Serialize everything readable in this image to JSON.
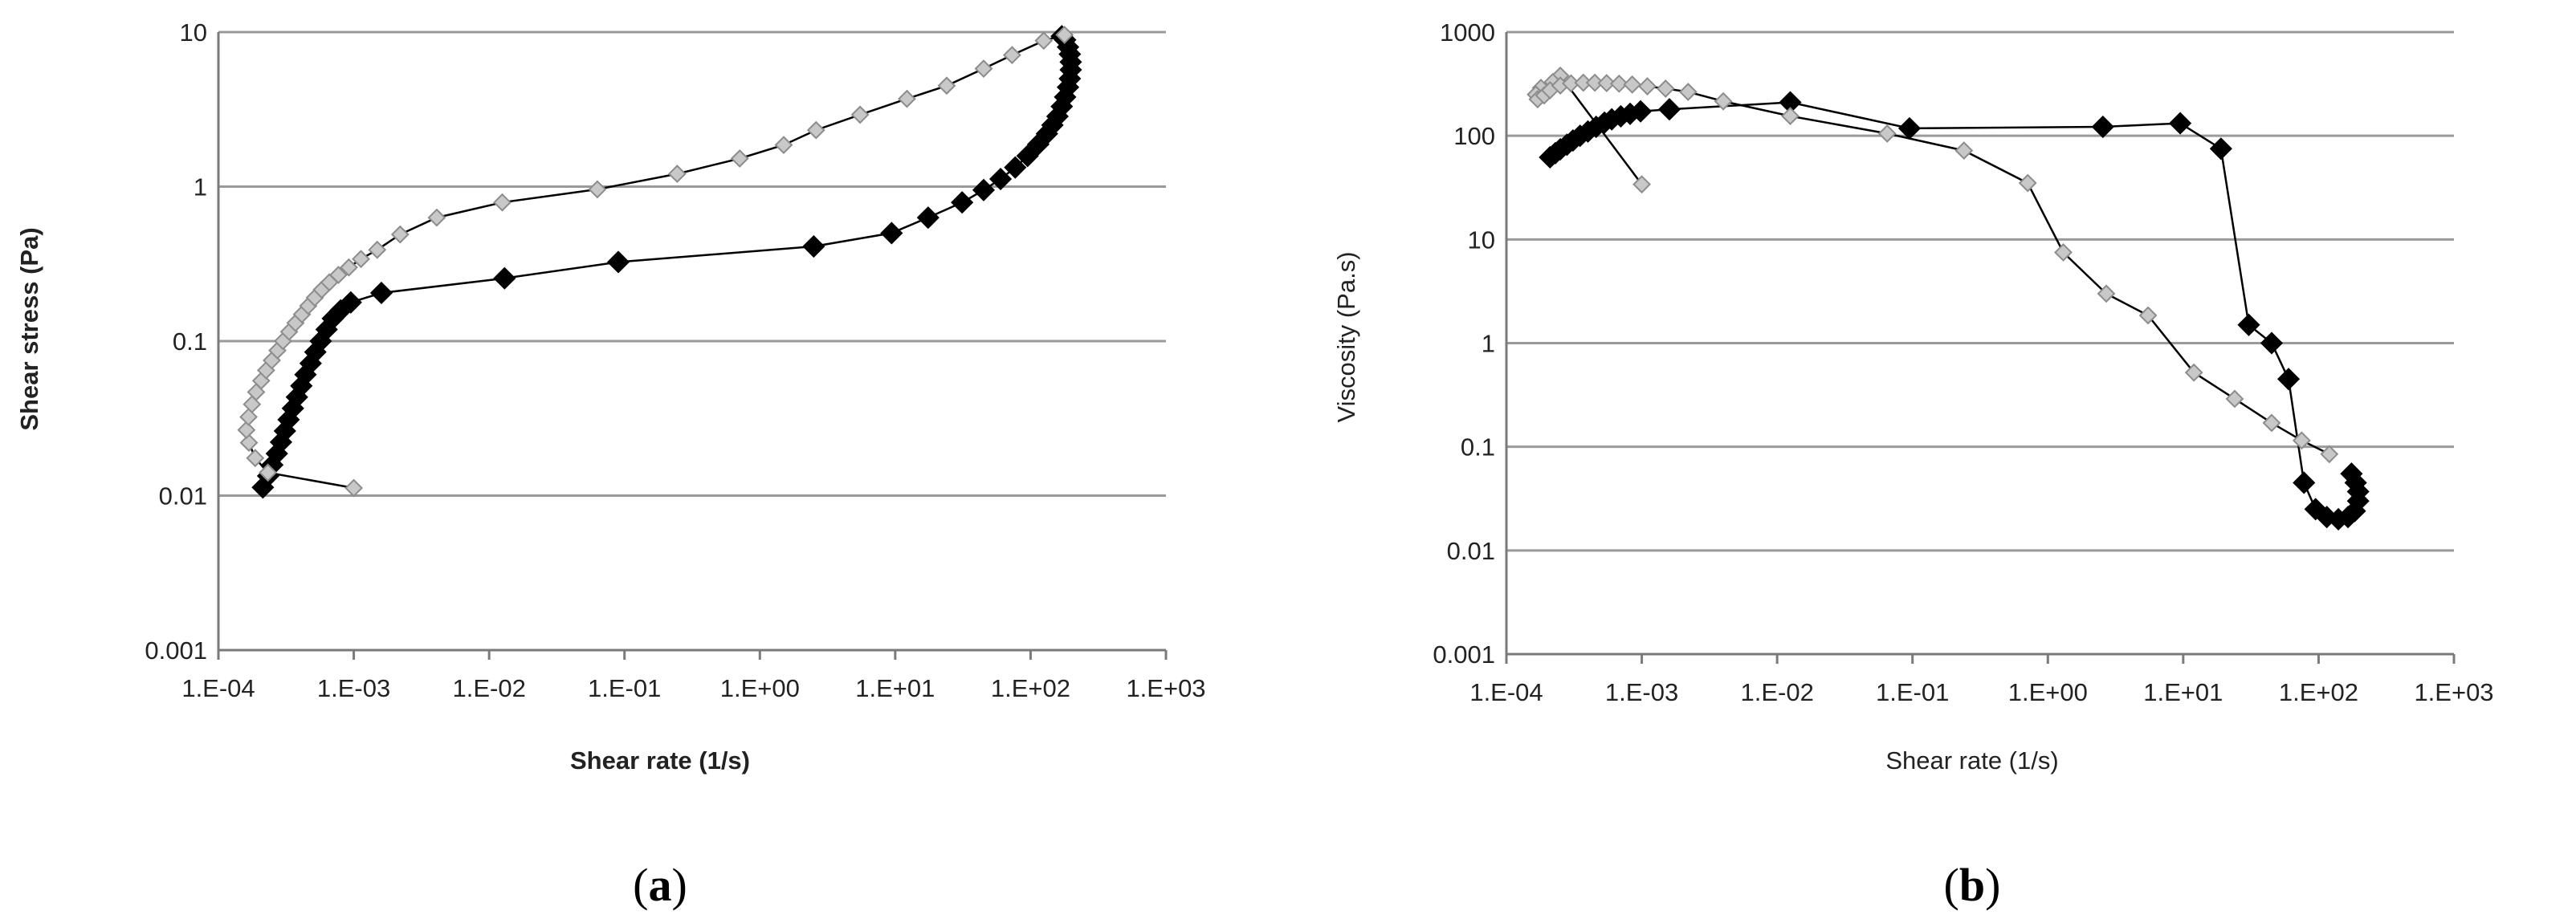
{
  "chart_data": [
    {
      "type": "scatter",
      "panel_label": "a",
      "xlabel": "Shear rate (1/s)",
      "ylabel": "Shear stress (Pa)",
      "xscale": "log",
      "yscale": "log",
      "xlim": [
        0.0001,
        1000
      ],
      "ylim": [
        0.001,
        10
      ],
      "xticks": [
        "1.E-04",
        "1.E-03",
        "1.E-02",
        "1.E-01",
        "1.E+00",
        "1.E+01",
        "1.E+02",
        "1.E+03"
      ],
      "yticks": [
        "0.001",
        "0.01",
        "0.1",
        "1",
        "10"
      ],
      "grid": "horizontal",
      "series": [
        {
          "color": "#000000",
          "marker": "diamond-filled",
          "points": [
            [
              0.000213,
              0.0113
            ],
            [
              0.000233,
              0.0134
            ],
            [
              0.00025,
              0.0158
            ],
            [
              0.00027,
              0.0187
            ],
            [
              0.00029,
              0.0222
            ],
            [
              0.00031,
              0.0262
            ],
            [
              0.00033,
              0.031
            ],
            [
              0.000355,
              0.0367
            ],
            [
              0.00038,
              0.0434
            ],
            [
              0.00041,
              0.0513
            ],
            [
              0.00044,
              0.0607
            ],
            [
              0.00048,
              0.0718
            ],
            [
              0.00052,
              0.0849
            ],
            [
              0.00057,
              0.1
            ],
            [
              0.00063,
              0.119
            ],
            [
              0.0007,
              0.14
            ],
            [
              0.0008,
              0.158
            ],
            [
              0.00095,
              0.178
            ],
            [
              0.0016,
              0.205
            ],
            [
              0.013,
              0.255
            ],
            [
              0.09,
              0.325
            ],
            [
              2.5,
              0.41
            ],
            [
              9.4,
              0.5
            ],
            [
              17.5,
              0.63
            ],
            [
              31.2,
              0.79
            ],
            [
              45,
              0.95
            ],
            [
              60,
              1.12
            ],
            [
              77,
              1.33
            ],
            [
              95,
              1.58
            ],
            [
              114,
              1.88
            ],
            [
              132,
              2.2
            ],
            [
              145,
              2.5
            ],
            [
              158,
              2.85
            ],
            [
              170,
              3.3
            ],
            [
              180,
              3.8
            ],
            [
              189,
              4.4
            ],
            [
              195,
              5.0
            ],
            [
              198,
              5.7
            ],
            [
              198,
              6.4
            ],
            [
              195,
              7.2
            ],
            [
              189,
              8.0
            ],
            [
              180,
              8.9
            ],
            [
              170,
              9.4
            ]
          ]
        },
        {
          "color": "#8c8c8c",
          "marker": "diamond-open",
          "points": [
            [
              0.001,
              0.0112
            ],
            [
              0.000232,
              0.0141
            ],
            [
              0.000187,
              0.0175
            ],
            [
              0.000168,
              0.022
            ],
            [
              0.000161,
              0.0266
            ],
            [
              0.000167,
              0.0323
            ],
            [
              0.000177,
              0.039
            ],
            [
              0.00019,
              0.0468
            ],
            [
              0.000207,
              0.0554
            ],
            [
              0.000225,
              0.0647
            ],
            [
              0.000248,
              0.075
            ],
            [
              0.000273,
              0.087
            ],
            [
              0.0003,
              0.1
            ],
            [
              0.000333,
              0.115
            ],
            [
              0.000371,
              0.131
            ],
            [
              0.000414,
              0.149
            ],
            [
              0.000461,
              0.169
            ],
            [
              0.000515,
              0.191
            ],
            [
              0.00058,
              0.215
            ],
            [
              0.00066,
              0.24
            ],
            [
              0.00077,
              0.268
            ],
            [
              0.00092,
              0.3
            ],
            [
              0.00113,
              0.34
            ],
            [
              0.00149,
              0.39
            ],
            [
              0.0022,
              0.49
            ],
            [
              0.0041,
              0.63
            ],
            [
              0.0125,
              0.79
            ],
            [
              0.063,
              0.96
            ],
            [
              0.245,
              1.21
            ],
            [
              0.71,
              1.52
            ],
            [
              1.5,
              1.86
            ],
            [
              2.6,
              2.32
            ],
            [
              5.5,
              2.92
            ],
            [
              12.2,
              3.7
            ],
            [
              24,
              4.5
            ],
            [
              45,
              5.8
            ],
            [
              73,
              7.1
            ],
            [
              125,
              8.8
            ],
            [
              178,
              9.6
            ]
          ]
        }
      ]
    },
    {
      "type": "scatter",
      "panel_label": "b",
      "xlabel": "Shear rate (1/s)",
      "ylabel": "Viscosity (Pa.s)",
      "xscale": "log",
      "yscale": "log",
      "xlim": [
        0.0001,
        1000
      ],
      "ylim": [
        0.001,
        1000
      ],
      "xticks": [
        "1.E-04",
        "1.E-03",
        "1.E-02",
        "1.E-01",
        "1.E+00",
        "1.E+01",
        "1.E+02",
        "1.E+03"
      ],
      "yticks": [
        "0.001",
        "0.01",
        "0.1",
        "1",
        "10",
        "100",
        "1000"
      ],
      "grid": "horizontal",
      "series": [
        {
          "color": "#000000",
          "marker": "diamond-filled",
          "points": [
            [
              0.00021,
              62
            ],
            [
              0.00023,
              68
            ],
            [
              0.00025,
              74
            ],
            [
              0.00028,
              82
            ],
            [
              0.00031,
              90
            ],
            [
              0.00035,
              100
            ],
            [
              0.0004,
              110
            ],
            [
              0.00046,
              122
            ],
            [
              0.00053,
              134
            ],
            [
              0.0006,
              144
            ],
            [
              0.0007,
              154
            ],
            [
              0.00082,
              163
            ],
            [
              0.00098,
              172
            ],
            [
              0.0016,
              180
            ],
            [
              0.0125,
              210
            ],
            [
              0.095,
              118
            ],
            [
              2.55,
              122
            ],
            [
              9.5,
              132
            ],
            [
              19,
              75
            ],
            [
              30.5,
              1.5
            ],
            [
              45,
              1.0
            ],
            [
              60,
              0.45
            ],
            [
              78,
              0.045
            ],
            [
              95,
              0.025
            ],
            [
              115,
              0.021
            ],
            [
              140,
              0.02
            ],
            [
              165,
              0.021
            ],
            [
              185,
              0.024
            ],
            [
              196,
              0.03
            ],
            [
              196,
              0.037
            ],
            [
              188,
              0.045
            ],
            [
              175,
              0.055
            ]
          ]
        },
        {
          "color": "#8c8c8c",
          "marker": "diamond-open",
          "points": [
            [
              0.001,
              34
            ],
            [
              0.00025,
              380
            ],
            [
              0.00022,
              330
            ],
            [
              0.00018,
              290
            ],
            [
              0.000165,
              250
            ],
            [
              0.00017,
              225
            ],
            [
              0.00019,
              245
            ],
            [
              0.00021,
              275
            ],
            [
              0.00025,
              305
            ],
            [
              0.0003,
              320
            ],
            [
              0.00037,
              325
            ],
            [
              0.00045,
              325
            ],
            [
              0.00055,
              322
            ],
            [
              0.00068,
              318
            ],
            [
              0.00085,
              312
            ],
            [
              0.0011,
              300
            ],
            [
              0.0015,
              285
            ],
            [
              0.0022,
              265
            ],
            [
              0.004,
              215
            ],
            [
              0.0125,
              155
            ],
            [
              0.065,
              105
            ],
            [
              0.24,
              72
            ],
            [
              0.71,
              35
            ],
            [
              1.3,
              7.5
            ],
            [
              2.7,
              3.0
            ],
            [
              5.5,
              1.85
            ],
            [
              12,
              0.52
            ],
            [
              24,
              0.29
            ],
            [
              45,
              0.17
            ],
            [
              75,
              0.115
            ],
            [
              120,
              0.085
            ]
          ]
        }
      ]
    }
  ],
  "panel_labels": [
    "a",
    "b"
  ]
}
